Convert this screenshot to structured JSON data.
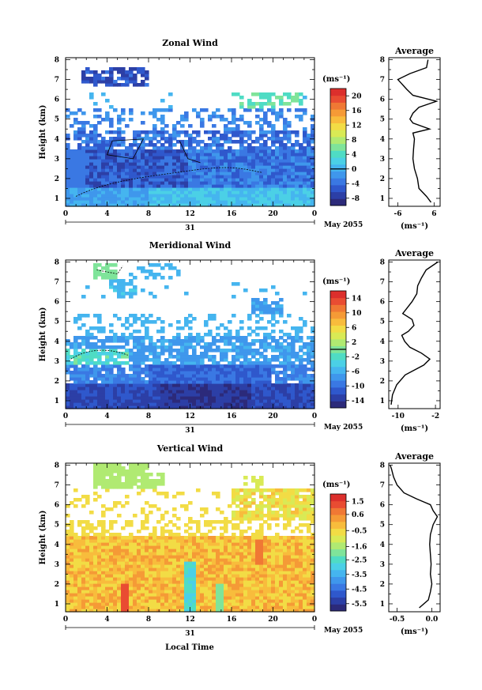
{
  "figure": {
    "xlabel": "Local Time",
    "date_label": "May 2055",
    "x_ticks": [
      "0",
      "4",
      "8",
      "12",
      "16",
      "20",
      "0"
    ],
    "day_label": "31",
    "ylabel": "Height (km)",
    "y_ticks": [
      "1",
      "2",
      "3",
      "4",
      "5",
      "6",
      "7",
      "8"
    ],
    "unit_label": "(ms⁻¹)",
    "profile_title": "Average",
    "profile_xlabel": "(ms⁻¹)"
  },
  "colormap": [
    "#2c2a7a",
    "#2c3fa6",
    "#2f58cc",
    "#3a78e3",
    "#3f97ec",
    "#45b5ef",
    "#4bd0e6",
    "#4fdcc4",
    "#7fe49a",
    "#b0ea72",
    "#d9ea55",
    "#f2dc45",
    "#f8bc3c",
    "#f59a36",
    "#f07834",
    "#e94c32",
    "#dc2f2c"
  ],
  "chart_data": [
    {
      "type": "heatmap",
      "title": "Zonal Wind",
      "colorbar_ticks": [
        "20",
        "16",
        "12",
        "8",
        "4",
        "0",
        "-4",
        "-8"
      ],
      "colorbar_range": [
        -10,
        22
      ],
      "zero_marker": 0,
      "x_range_hours": [
        0,
        24
      ],
      "y_range_km": [
        0.6,
        8.1
      ],
      "profile": {
        "title": "Average",
        "xticks": [
          "-6",
          "6"
        ],
        "xlim": [
          -9,
          8
        ],
        "height_km": [
          0.8,
          1.1,
          1.5,
          2.0,
          2.5,
          3.0,
          3.5,
          4.0,
          4.3,
          4.5,
          4.8,
          5.0,
          5.3,
          5.6,
          5.9,
          6.2,
          6.5,
          7.0,
          7.3,
          7.6,
          8.0
        ],
        "speed_ms": [
          5.0,
          3.5,
          1.0,
          0.5,
          -0.5,
          -1.0,
          -0.8,
          -0.5,
          -1.0,
          4.5,
          -1.0,
          -2.0,
          -1.0,
          1.0,
          6.8,
          -1.0,
          -3.0,
          -6.0,
          -2.0,
          3.5,
          4.0
        ]
      }
    },
    {
      "type": "heatmap",
      "title": "Meridional Wind",
      "colorbar_ticks": [
        "14",
        "10",
        "6",
        "2",
        "-2",
        "-6",
        "-10",
        "-14"
      ],
      "colorbar_range": [
        -16,
        16
      ],
      "zero_marker": 0,
      "x_range_hours": [
        0,
        24
      ],
      "y_range_km": [
        0.6,
        8.1
      ],
      "profile": {
        "title": "Average",
        "xticks": [
          "-10",
          "-2"
        ],
        "xlim": [
          -12,
          -1
        ],
        "height_km": [
          0.8,
          1.3,
          1.8,
          2.3,
          2.8,
          3.1,
          3.4,
          3.7,
          4.0,
          4.3,
          4.5,
          4.8,
          5.1,
          5.4,
          5.7,
          6.0,
          6.4,
          6.8,
          7.2,
          7.6,
          8.0
        ],
        "speed_ms": [
          -11.5,
          -11.2,
          -10.3,
          -8.5,
          -4.5,
          -3.2,
          -5.0,
          -7.5,
          -8.6,
          -9.2,
          -7.8,
          -6.6,
          -7.0,
          -9.0,
          -8.0,
          -7.0,
          -6.0,
          -5.8,
          -5.0,
          -4.0,
          -1.5
        ]
      }
    },
    {
      "type": "heatmap",
      "title": "Vertical Wind",
      "colorbar_ticks": [
        "1.5",
        "0.6",
        "-0.5",
        "-1.6",
        "-2.5",
        "-3.5",
        "-4.5",
        "-5.5"
      ],
      "colorbar_range": [
        -6,
        2
      ],
      "zero_marker": null,
      "x_range_hours": [
        0,
        24
      ],
      "y_range_km": [
        0.6,
        8.1
      ],
      "profile": {
        "title": "Average",
        "xticks": [
          "-0.5",
          "0.0"
        ],
        "xlim": [
          -0.62,
          0.12
        ],
        "height_km": [
          0.8,
          1.2,
          1.6,
          2.0,
          2.5,
          3.0,
          3.5,
          4.0,
          4.5,
          5.0,
          5.4,
          5.7,
          6.0,
          6.3,
          6.6,
          7.0,
          7.4,
          7.8,
          8.0
        ],
        "speed_ms": [
          -0.18,
          -0.05,
          -0.02,
          0.0,
          -0.02,
          -0.01,
          -0.02,
          -0.03,
          -0.02,
          0.02,
          0.08,
          0.02,
          -0.02,
          -0.22,
          -0.4,
          -0.5,
          -0.55,
          -0.58,
          -0.6
        ]
      }
    }
  ]
}
